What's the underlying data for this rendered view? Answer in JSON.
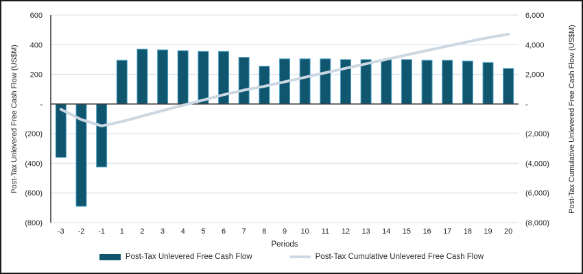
{
  "figure": {
    "background": "#ffffff",
    "border_color": "#1b1b1b"
  },
  "colors": {
    "bar_fill": "#10566E",
    "bar_border": "#4FA6CC",
    "line": "#CBD7E2",
    "gridline": "#DAE3EB",
    "axis_line": "#3F3F3F",
    "text": "#262626"
  },
  "chart_data": {
    "type": "bar",
    "subtype": "combo bar + line, dual y-axes",
    "categories": [
      "-3",
      "-2",
      "-1",
      "1",
      "2",
      "3",
      "4",
      "5",
      "6",
      "7",
      "8",
      "9",
      "10",
      "11",
      "12",
      "13",
      "14",
      "15",
      "16",
      "17",
      "18",
      "19",
      "20"
    ],
    "series": [
      {
        "name": "Post-Tax Unlevered Free Cash Flow",
        "type": "bar",
        "axis": "left",
        "values": [
          -360,
          -690,
          -425,
          295,
          370,
          365,
          360,
          355,
          355,
          315,
          255,
          305,
          305,
          305,
          300,
          300,
          300,
          300,
          295,
          295,
          290,
          280,
          240
        ]
      },
      {
        "name": "Post-Tax Cumulative Unlevered Free Cash Flow",
        "type": "line",
        "axis": "right",
        "values": [
          -360,
          -1050,
          -1475,
          -1180,
          -810,
          -445,
          -85,
          270,
          625,
          940,
          1195,
          1500,
          1805,
          2110,
          2410,
          2710,
          3010,
          3310,
          3610,
          3905,
          4195,
          4475,
          4715
        ]
      }
    ],
    "xlabel": "Periods",
    "left_axis": {
      "label": "Post-Tax Unlevered Free Cash Flow (US$M)",
      "min": -800,
      "max": 600,
      "step": 200,
      "ticks": [
        "600",
        "400",
        "200",
        "-",
        "(200)",
        "(400)",
        "(600)",
        "(800)"
      ],
      "tick_values": [
        600,
        400,
        200,
        0,
        -200,
        -400,
        -600,
        -800
      ]
    },
    "right_axis": {
      "label": "Post-Tax Cumulative Unlevered Free Cash Flow (US$M)",
      "min": -8000,
      "max": 6000,
      "step": 2000,
      "ticks": [
        "6,000",
        "4,000",
        "2,000",
        "-",
        "(2,000)",
        "(4,000)",
        "(6,000)",
        "(8,000)"
      ],
      "tick_values": [
        6000,
        4000,
        2000,
        0,
        -2000,
        -4000,
        -6000,
        -8000
      ]
    },
    "grid": true,
    "legend_position": "bottom"
  }
}
